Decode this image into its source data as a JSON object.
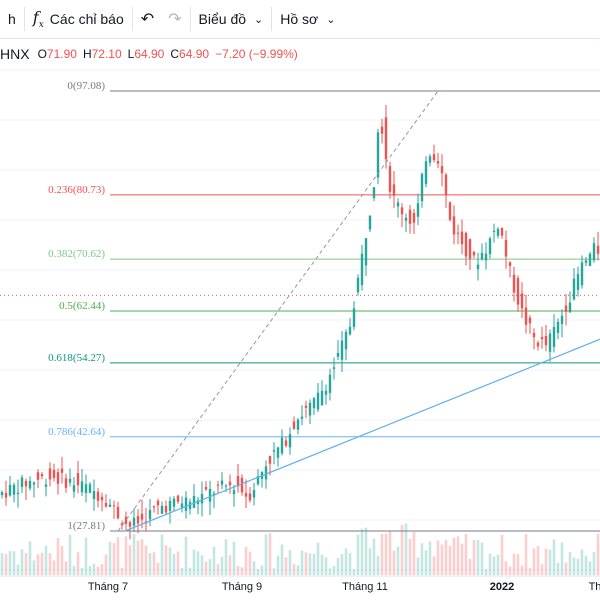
{
  "toolbar": {
    "left_partial": "h",
    "indicators_label": "Các chỉ báo",
    "chart_type_label": "Biểu đồ",
    "profile_label": "Hồ sơ"
  },
  "legend": {
    "symbol": "HNX",
    "o_key": "O",
    "o_val": "71.90",
    "h_key": "H",
    "h_val": "72.10",
    "l_key": "L",
    "l_val": "64.90",
    "c_key": "C",
    "c_val": "64.90",
    "change": "−7.20 (−9.99%)"
  },
  "colors": {
    "up": "#26a69a",
    "down": "#ef5350",
    "trend": "#5fb0e8",
    "diag": "#9598a1"
  },
  "chart_data": {
    "type": "candlestick",
    "y_range": [
      20,
      100
    ],
    "x_ticks": [
      "Tháng 7",
      "Tháng 9",
      "Tháng 11",
      "2022",
      "Th"
    ],
    "fib_levels": [
      {
        "label": "0(97.08)",
        "value": 97.08,
        "color": "#787b86"
      },
      {
        "label": "0.236(80.73)",
        "value": 80.73,
        "color": "#ef5350"
      },
      {
        "label": "0.382(70.62)",
        "value": 70.62,
        "color": "#81c784"
      },
      {
        "label": "0.5(62.44)",
        "value": 62.44,
        "color": "#4caf50"
      },
      {
        "label": "0.618(54.27)",
        "value": 54.27,
        "color": "#089981"
      },
      {
        "label": "0.786(42.64)",
        "value": 42.64,
        "color": "#64b5f6"
      },
      {
        "label": "1(27.81)",
        "value": 27.81,
        "color": "#787b86"
      }
    ],
    "last_price": 64.9,
    "trendline": [
      [
        27.81,
        0
      ],
      [
        58.0,
        1
      ]
    ],
    "close_path": [
      [
        0,
        33.5
      ],
      [
        0.03,
        34.8
      ],
      [
        0.06,
        35.8
      ],
      [
        0.09,
        36.4
      ],
      [
        0.12,
        35.6
      ],
      [
        0.15,
        34.6
      ],
      [
        0.18,
        33.0
      ],
      [
        0.2,
        30.5
      ],
      [
        0.22,
        28.6
      ],
      [
        0.24,
        29.4
      ],
      [
        0.27,
        31.6
      ],
      [
        0.3,
        32.2
      ],
      [
        0.33,
        32.8
      ],
      [
        0.37,
        34.5
      ],
      [
        0.4,
        35.2
      ],
      [
        0.42,
        33.2
      ],
      [
        0.45,
        38.5
      ],
      [
        0.48,
        41.8
      ],
      [
        0.5,
        45.5
      ],
      [
        0.53,
        47.8
      ],
      [
        0.55,
        51.0
      ],
      [
        0.57,
        55.0
      ],
      [
        0.59,
        60.0
      ],
      [
        0.61,
        70.5
      ],
      [
        0.63,
        82.0
      ],
      [
        0.64,
        94.5
      ],
      [
        0.66,
        80.5
      ],
      [
        0.68,
        78.0
      ],
      [
        0.7,
        76.0
      ],
      [
        0.72,
        88.0
      ],
      [
        0.74,
        86.5
      ],
      [
        0.76,
        76.0
      ],
      [
        0.78,
        73.0
      ],
      [
        0.8,
        70.0
      ],
      [
        0.82,
        72.5
      ],
      [
        0.84,
        76.5
      ],
      [
        0.86,
        68.0
      ],
      [
        0.88,
        62.0
      ],
      [
        0.9,
        58.0
      ],
      [
        0.92,
        57.0
      ],
      [
        0.94,
        60.5
      ],
      [
        0.96,
        65.0
      ],
      [
        0.98,
        69.5
      ],
      [
        1.0,
        72.0
      ]
    ]
  }
}
